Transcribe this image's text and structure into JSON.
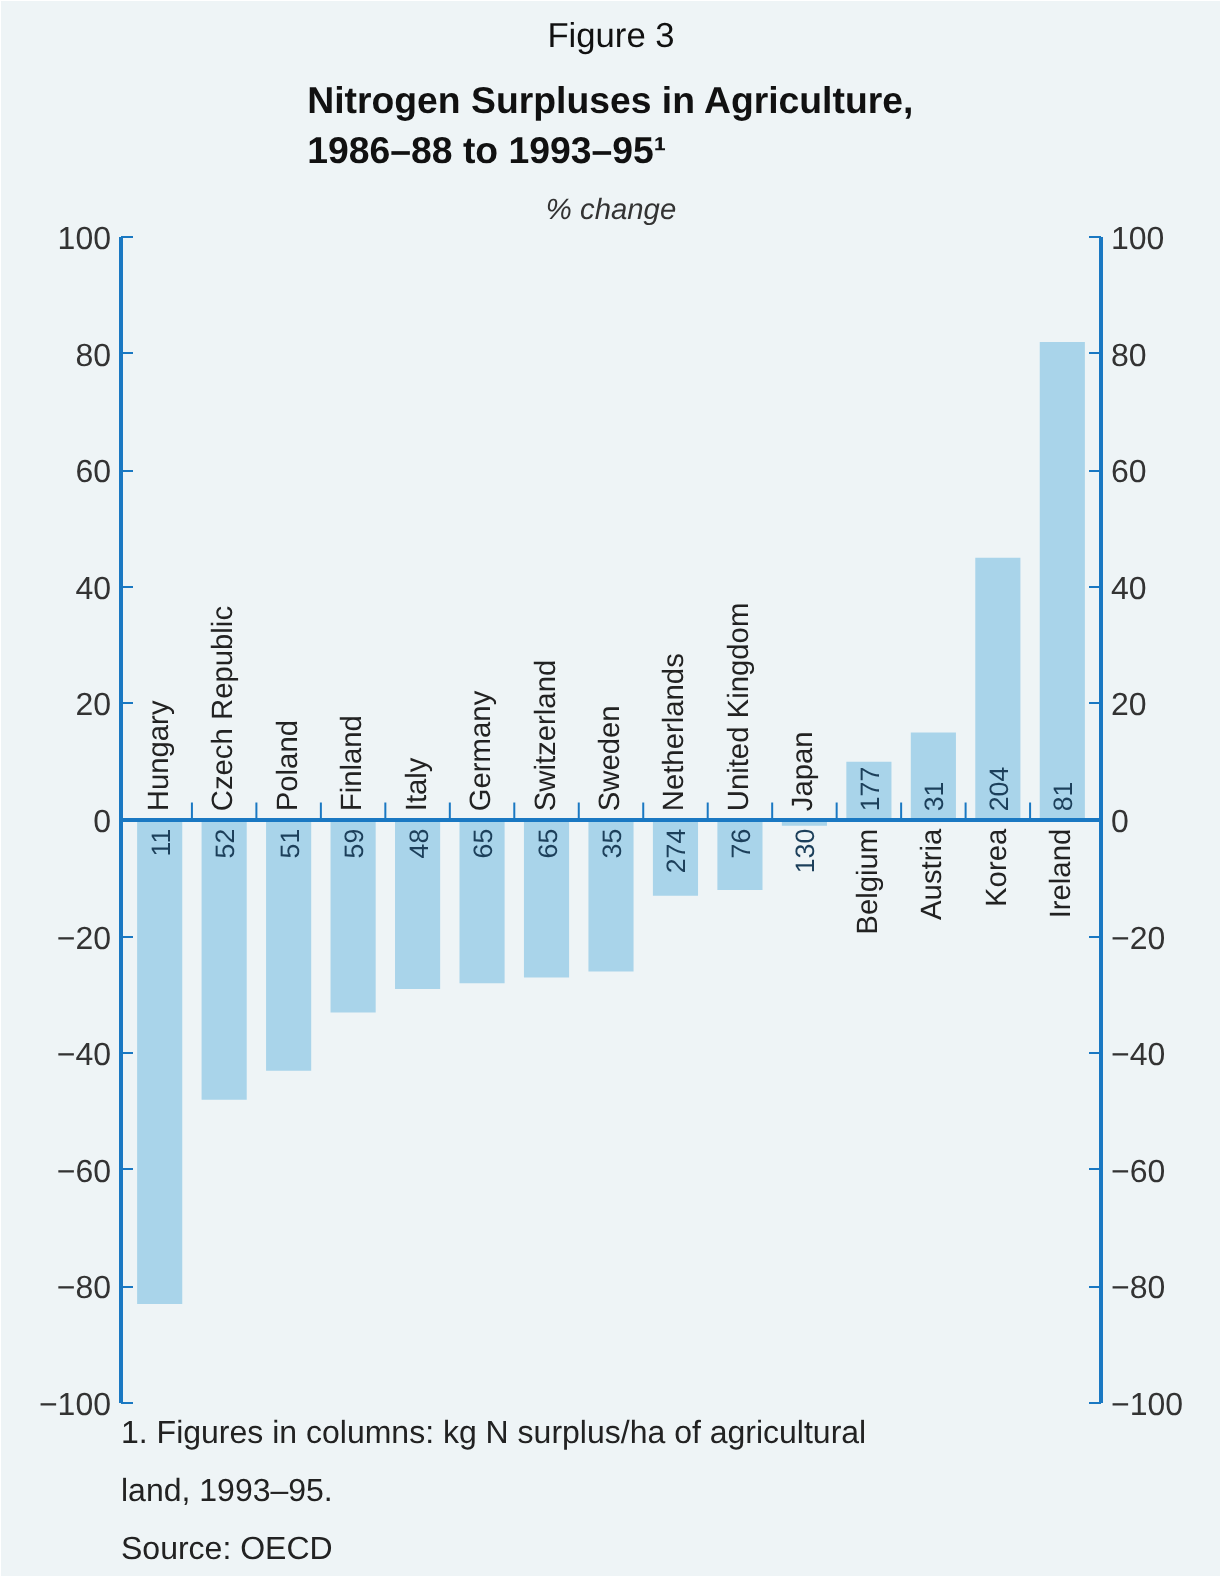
{
  "chart_data": {
    "type": "bar",
    "title": "Figure 3",
    "subtitle": "Nitrogen Surpluses in Agriculture,\n1986–88 to 1993–95¹",
    "ylabel": "% change",
    "categories": [
      "Hungary",
      "Czech Republic",
      "Poland",
      "Finland",
      "Italy",
      "Germany",
      "Switzerland",
      "Sweden",
      "Netherlands",
      "United Kingdom",
      "Japan",
      "Belgium",
      "Austria",
      "Korea",
      "Ireland"
    ],
    "values": [
      -83,
      -48,
      -43,
      -33,
      -29,
      -28,
      -27,
      -26,
      -13,
      -12,
      -1,
      10,
      15,
      45,
      82
    ],
    "color": "#a9d4ea",
    "ylim": [
      -100,
      100
    ],
    "yticks": [
      -100,
      -80,
      -60,
      -40,
      -20,
      0,
      20,
      40,
      60,
      80,
      100
    ],
    "y2lim": [
      -100,
      100
    ],
    "y2ticks": [
      -100,
      -80,
      -60,
      -40,
      -20,
      0,
      20,
      40,
      60,
      80,
      100
    ],
    "annotations": [
      "11",
      "52",
      "51",
      "59",
      "48",
      "65",
      "65",
      "35",
      "274",
      "76",
      "130",
      "177",
      "31",
      "204",
      "81",
      "1. Figures in columns: kg N surplus/ha of agricultural land, 1993–95.",
      "Source: OECD"
    ]
  }
}
